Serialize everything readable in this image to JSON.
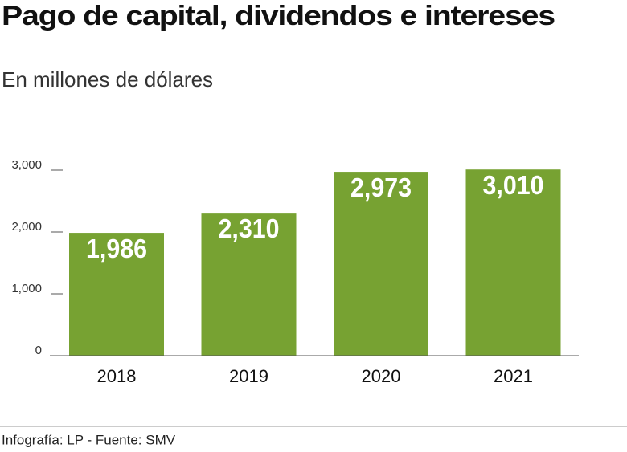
{
  "chart_data": {
    "type": "bar",
    "title": "Pago de capital, dividendos e intereses",
    "subtitle": "En millones de dólares",
    "categories": [
      "2018",
      "2019",
      "2020",
      "2021"
    ],
    "values": [
      1986,
      2310,
      2973,
      3010
    ],
    "value_labels": [
      "1,986",
      "2,310",
      "2,973",
      "3,010"
    ],
    "color": "#77a232",
    "ylim": [
      0,
      3000
    ],
    "yticks": [
      0,
      {
        "value": 1000,
        "label": "1,000"
      },
      {
        "value": 2000,
        "label": "2,000"
      },
      {
        "value": 3000,
        "label": "3,000"
      }
    ],
    "source": "Infografía: LP - Fuente: SMV"
  }
}
